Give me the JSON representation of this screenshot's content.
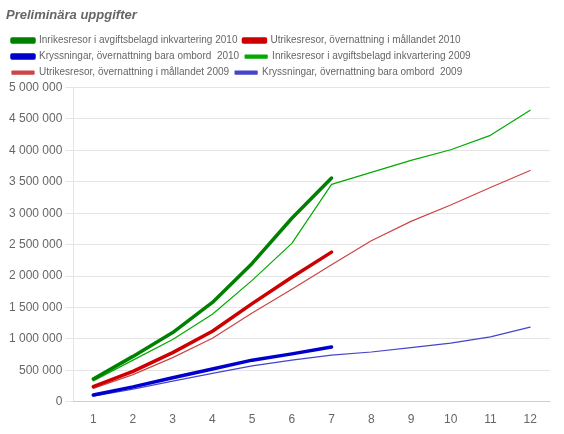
{
  "chart_data": {
    "type": "line",
    "title": "Preliminära uppgifter",
    "x": [
      1,
      2,
      3,
      4,
      5,
      6,
      7,
      8,
      9,
      10,
      11,
      12
    ],
    "series": [
      {
        "name": "Inrikesresor i avgiftsbelagd inkvartering 2010",
        "color": "#008000",
        "values": [
          360000,
          720000,
          1100000,
          1580000,
          2200000,
          2920000,
          3560000,
          null,
          null,
          null,
          null,
          null
        ]
      },
      {
        "name": "Utrikesresor, övernattning i mållandet 2010",
        "color": "#cc0000",
        "values": [
          240000,
          480000,
          780000,
          1120000,
          1560000,
          1980000,
          2380000,
          null,
          null,
          null,
          null,
          null
        ]
      },
      {
        "name": "Kryssningar, övernattning bara ombord  2010",
        "color": "#0000cc",
        "values": [
          105000,
          235000,
          380000,
          520000,
          660000,
          760000,
          870000,
          null,
          null,
          null,
          null,
          null
        ]
      },
      {
        "name": "Inrikesresor i avgiftsbelagd inkvartering 2009",
        "color": "#00aa00",
        "values": [
          330000,
          660000,
          990000,
          1390000,
          1930000,
          2520000,
          3460000,
          3650000,
          3840000,
          4010000,
          4240000,
          4640000
        ]
      },
      {
        "name": "Utrikesresor, övernattning i mållandet 2009",
        "color": "#cc4444",
        "values": [
          210000,
          430000,
          700000,
          1010000,
          1410000,
          1790000,
          2180000,
          2560000,
          2870000,
          3130000,
          3410000,
          3680000
        ]
      },
      {
        "name": "Kryssningar, övernattning bara ombord  2009",
        "color": "#4444cc",
        "values": [
          85000,
          200000,
          325000,
          450000,
          570000,
          660000,
          740000,
          790000,
          860000,
          930000,
          1030000,
          1185000
        ]
      }
    ],
    "xlim": [
      0.5,
      12.5
    ],
    "xticks": [
      1,
      2,
      3,
      4,
      5,
      6,
      7,
      8,
      9,
      10,
      11,
      12
    ],
    "ylim": [
      0,
      5000000
    ],
    "yticks": [
      0,
      {
        "value": 500000,
        "label": "500 000"
      },
      {
        "value": 1000000,
        "label": "1 000 000"
      },
      {
        "value": 1500000,
        "label": "1 500 000"
      },
      {
        "value": 2000000,
        "label": "2 000 000"
      },
      {
        "value": 2500000,
        "label": "2 500 000"
      },
      {
        "value": 3000000,
        "label": "3 000 000"
      },
      {
        "value": 3500000,
        "label": "3 500 000"
      },
      {
        "value": 4000000,
        "label": "4 000 000"
      },
      {
        "value": 4500000,
        "label": "4 500 000"
      },
      {
        "value": 5000000,
        "label": "5 000 000"
      }
    ],
    "grid": true,
    "legend": "upper left"
  }
}
